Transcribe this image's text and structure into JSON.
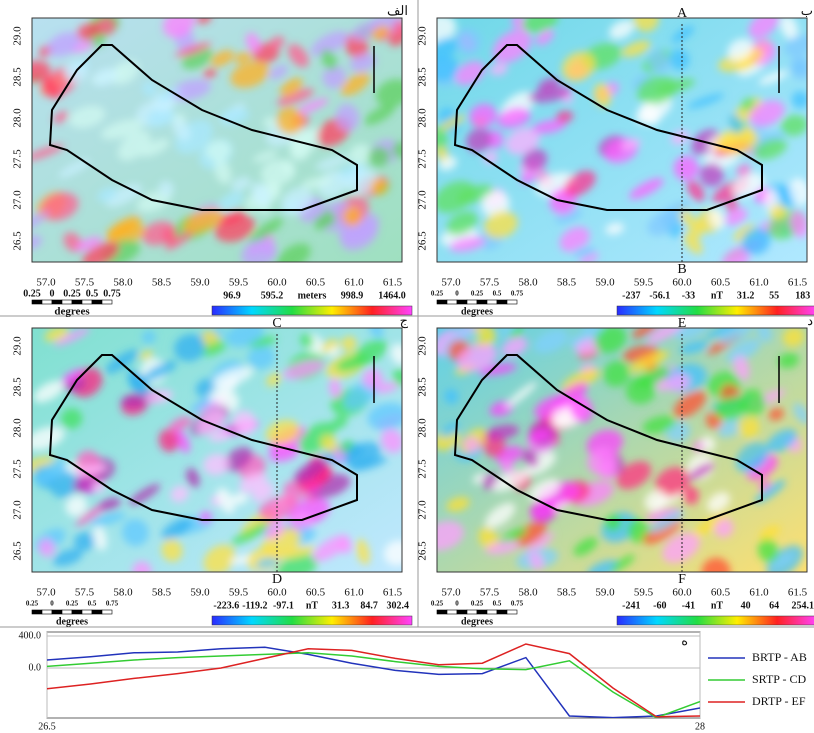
{
  "map_axes": {
    "x_labels": [
      "57.0",
      "57.5",
      "58.0",
      "58.5",
      "59.0",
      "59.5",
      "60.0",
      "60.5",
      "61.0",
      "61.5"
    ],
    "y_labels": [
      "29.0",
      "28.5",
      "28.0",
      "27.5",
      "27.0",
      "26.5"
    ]
  },
  "scale_bar": {
    "labels": [
      "0.25",
      "0",
      "0.25",
      "0.5",
      "0.75"
    ],
    "unit": "degrees"
  },
  "panels": [
    {
      "label": "الف",
      "colorbar_labels": [
        "96.9",
        "595.2",
        "meters",
        "998.9",
        "1464.0"
      ]
    },
    {
      "label": "ب",
      "point_labels": [
        "A",
        "B"
      ],
      "colorbar_labels": [
        "-237",
        "-56.1",
        "-33",
        "nT",
        "31.2",
        "55",
        "183"
      ]
    },
    {
      "label": "ج",
      "point_labels": [
        "C",
        "D"
      ],
      "colorbar_labels": [
        "-223.6",
        "-119.2",
        "-97.1",
        "nT",
        "31.3",
        "84.7",
        "302.4"
      ]
    },
    {
      "label": "د",
      "point_labels": [
        "E",
        "F"
      ],
      "colorbar_labels": [
        "-241",
        "-60",
        "-41",
        "nT",
        "40",
        "64",
        "254.1"
      ]
    }
  ],
  "chart_data": {
    "type": "line",
    "label": "ه",
    "x": [
      26.5,
      26.6,
      26.7,
      26.8,
      26.9,
      27.0,
      27.1,
      27.2,
      27.3,
      27.4,
      27.5,
      27.6,
      27.7,
      27.8,
      27.9,
      28.0
    ],
    "series": [
      {
        "name": "BRTP - AB",
        "color": "#2233bb",
        "values": [
          100,
          140,
          190,
          200,
          240,
          260,
          170,
          60,
          -30,
          -80,
          -70,
          130,
          -600,
          -620,
          -600,
          -500
        ]
      },
      {
        "name": "SRTP - CD",
        "color": "#33cc33",
        "values": [
          20,
          60,
          100,
          130,
          150,
          170,
          190,
          150,
          80,
          20,
          -10,
          -20,
          90,
          -300,
          -620,
          -420
        ]
      },
      {
        "name": "DRTP - EF",
        "color": "#dd2222",
        "values": [
          -260,
          -200,
          -130,
          -70,
          0,
          120,
          240,
          220,
          120,
          40,
          60,
          300,
          180,
          -250,
          -610,
          -600
        ]
      }
    ],
    "xlim": [
      26.5,
      28
    ],
    "xticks": [
      26.5,
      28
    ],
    "ylim": [
      -625,
      450
    ],
    "yticks": [
      {
        "value": 400,
        "label": "400.0"
      },
      {
        "value": 0,
        "label": "0.0"
      }
    ],
    "grid": true
  }
}
